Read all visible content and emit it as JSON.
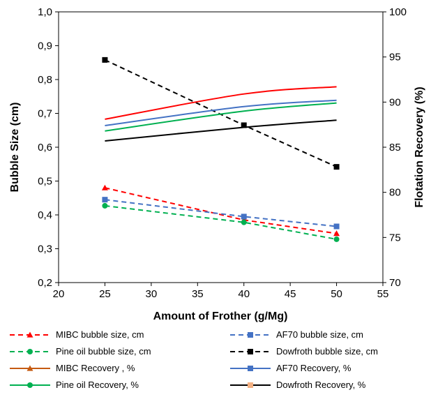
{
  "chart_data": {
    "type": "line",
    "title": "",
    "xlabel": "Amount of Frother (g/Mg)",
    "ylabel": "Bubble Size (cm)",
    "y2label": "Flotation Recovery (%)",
    "x": [
      25,
      40,
      50
    ],
    "xlim": [
      20,
      55
    ],
    "ylim": [
      0.2,
      1.0
    ],
    "y2lim": [
      70,
      100
    ],
    "xticks": [
      "20",
      "25",
      "30",
      "35",
      "40",
      "45",
      "50",
      "55"
    ],
    "yticks": [
      "0,2",
      "0,3",
      "0,4",
      "0,5",
      "0,6",
      "0,7",
      "0,8",
      "0,9",
      "1,0"
    ],
    "y2ticks": [
      "70",
      "75",
      "80",
      "85",
      "90",
      "95",
      "100"
    ],
    "grid": false,
    "legend_position": "bottom",
    "series": [
      {
        "name": "MIBC bubble size, cm",
        "axis": "left",
        "values": [
          0.48,
          0.385,
          0.345
        ],
        "color": "#ff0000",
        "dash": true,
        "marker": "triangle"
      },
      {
        "name": "AF70  bubble size, cm",
        "axis": "left",
        "values": [
          0.445,
          0.395,
          0.366
        ],
        "color": "#4472c4",
        "dash": true,
        "marker": "square"
      },
      {
        "name": "Pine oil bubble size, cm",
        "axis": "left",
        "values": [
          0.427,
          0.378,
          0.328
        ],
        "color": "#00b050",
        "dash": true,
        "marker": "circle"
      },
      {
        "name": "Dowfroth bubble size, cm",
        "axis": "left",
        "values": [
          0.858,
          0.665,
          0.542
        ],
        "color": "#000000",
        "dash": true,
        "marker": "square"
      },
      {
        "name": "MIBC Recovery , %",
        "axis": "right",
        "values": [
          88.1,
          90.9,
          91.7
        ],
        "color": "#ff0000",
        "dash": false,
        "marker": "triangle"
      },
      {
        "name": "AF70 Recovery,  %",
        "axis": "right",
        "values": [
          87.4,
          89.5,
          90.2
        ],
        "color": "#4472c4",
        "dash": false,
        "marker": "square"
      },
      {
        "name": "Pine oil Recovery,  %",
        "axis": "right",
        "values": [
          86.8,
          89.0,
          89.9
        ],
        "color": "#00b050",
        "dash": false,
        "marker": "circle"
      },
      {
        "name": "Dowfroth Recovery,  %",
        "axis": "right",
        "values": [
          85.7,
          87.2,
          88.0
        ],
        "color": "#000000",
        "dash": false,
        "marker": "square"
      }
    ]
  }
}
